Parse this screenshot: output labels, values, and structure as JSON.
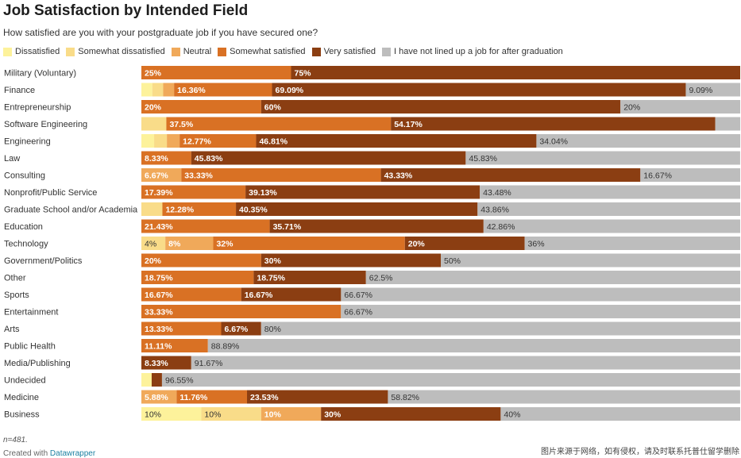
{
  "chart_data": {
    "type": "bar",
    "title": "Job Satisfaction by Intended Field",
    "subtitle": "How satisfied are you with your postgraduate job if you have secured one?",
    "series_names": [
      "Dissatisfied",
      "Somewhat dissatisfied",
      "Neutral",
      "Somewhat satisfied",
      "Very satisfied",
      "I have not lined up a job for after graduation"
    ],
    "colors": [
      "#fdf29b",
      "#f9dc89",
      "#f0a95a",
      "#d97124",
      "#8b3e12",
      "#bdbdbd"
    ],
    "categories": [
      "Military (Voluntary)",
      "Finance",
      "Entrepreneurship",
      "Software Engineering",
      "Engineering",
      "Law",
      "Consulting",
      "Nonprofit/Public Service",
      "Graduate School and/or Academia",
      "Education",
      "Technology",
      "Government/Politics",
      "Other",
      "Sports",
      "Entertainment",
      "Arts",
      "Public Health",
      "Media/Publishing",
      "Undecided",
      "Medicine",
      "Business"
    ],
    "rows": [
      {
        "values": [
          0,
          0,
          0,
          25,
          75,
          0
        ],
        "labels": [
          "",
          "",
          "",
          "25%",
          "75%",
          ""
        ]
      },
      {
        "values": [
          1.82,
          1.82,
          1.82,
          16.36,
          69.09,
          9.09
        ],
        "labels": [
          "",
          "",
          "",
          "16.36%",
          "69.09%",
          "9.09%"
        ]
      },
      {
        "values": [
          0,
          0,
          0,
          20,
          60,
          20
        ],
        "labels": [
          "",
          "",
          "",
          "20%",
          "60%",
          "20%"
        ]
      },
      {
        "values": [
          0,
          4.17,
          0,
          37.5,
          54.17,
          4.17
        ],
        "labels": [
          "",
          "",
          "",
          "37.5%",
          "54.17%",
          ""
        ]
      },
      {
        "values": [
          2.13,
          2.13,
          2.13,
          12.77,
          46.81,
          34.04
        ],
        "labels": [
          "",
          "",
          "",
          "12.77%",
          "46.81%",
          "34.04%"
        ]
      },
      {
        "values": [
          0,
          0,
          0,
          8.33,
          45.83,
          45.83
        ],
        "labels": [
          "",
          "",
          "",
          "8.33%",
          "45.83%",
          "45.83%"
        ]
      },
      {
        "values": [
          0,
          0,
          6.67,
          33.33,
          43.33,
          16.67
        ],
        "labels": [
          "",
          "",
          "6.67%",
          "33.33%",
          "43.33%",
          "16.67%"
        ]
      },
      {
        "values": [
          0,
          0,
          0,
          17.39,
          39.13,
          43.48
        ],
        "labels": [
          "",
          "",
          "",
          "17.39%",
          "39.13%",
          "43.48%"
        ]
      },
      {
        "values": [
          0,
          3.51,
          0,
          12.28,
          40.35,
          43.86
        ],
        "labels": [
          "",
          "",
          "",
          "12.28%",
          "40.35%",
          "43.86%"
        ]
      },
      {
        "values": [
          0,
          0,
          0,
          21.43,
          35.71,
          42.86
        ],
        "labels": [
          "",
          "",
          "",
          "21.43%",
          "35.71%",
          "42.86%"
        ]
      },
      {
        "values": [
          0,
          4,
          8,
          32,
          20,
          36
        ],
        "labels": [
          "",
          "4%",
          "8%",
          "32%",
          "20%",
          "36%"
        ]
      },
      {
        "values": [
          0,
          0,
          0,
          20,
          30,
          50
        ],
        "labels": [
          "",
          "",
          "",
          "20%",
          "30%",
          "50%"
        ]
      },
      {
        "values": [
          0,
          0,
          0,
          18.75,
          18.75,
          62.5
        ],
        "labels": [
          "",
          "",
          "",
          "18.75%",
          "18.75%",
          "62.5%"
        ]
      },
      {
        "values": [
          0,
          0,
          0,
          16.67,
          16.67,
          66.67
        ],
        "labels": [
          "",
          "",
          "",
          "16.67%",
          "16.67%",
          "66.67%"
        ]
      },
      {
        "values": [
          0,
          0,
          0,
          33.33,
          0,
          66.67
        ],
        "labels": [
          "",
          "",
          "",
          "33.33%",
          "",
          "66.67%"
        ]
      },
      {
        "values": [
          0,
          0,
          0,
          13.33,
          6.67,
          80
        ],
        "labels": [
          "",
          "",
          "",
          "13.33%",
          "6.67%",
          "80%"
        ]
      },
      {
        "values": [
          0,
          0,
          0,
          11.11,
          0,
          88.89
        ],
        "labels": [
          "",
          "",
          "",
          "11.11%",
          "",
          "88.89%"
        ]
      },
      {
        "values": [
          0,
          0,
          0,
          0,
          8.33,
          91.67
        ],
        "labels": [
          "",
          "",
          "",
          "",
          "8.33%",
          "91.67%"
        ]
      },
      {
        "values": [
          1.72,
          0,
          0,
          0,
          1.72,
          96.55
        ],
        "labels": [
          "",
          "",
          "",
          "",
          "",
          "96.55%"
        ]
      },
      {
        "values": [
          0,
          0,
          5.88,
          11.76,
          23.53,
          58.82
        ],
        "labels": [
          "",
          "",
          "5.88%",
          "11.76%",
          "23.53%",
          "58.82%"
        ]
      },
      {
        "values": [
          10,
          10,
          10,
          0,
          30,
          40
        ],
        "labels": [
          "10%",
          "10%",
          "10%",
          "",
          "30%",
          "40%"
        ]
      }
    ],
    "xlim": [
      0,
      100
    ]
  },
  "note": "n=481.",
  "credit": {
    "prefix": "Created with",
    "link": "Datawrapper"
  },
  "watermark": "图片来源于网络，如有侵权，请及时联系托普仕留学删除"
}
